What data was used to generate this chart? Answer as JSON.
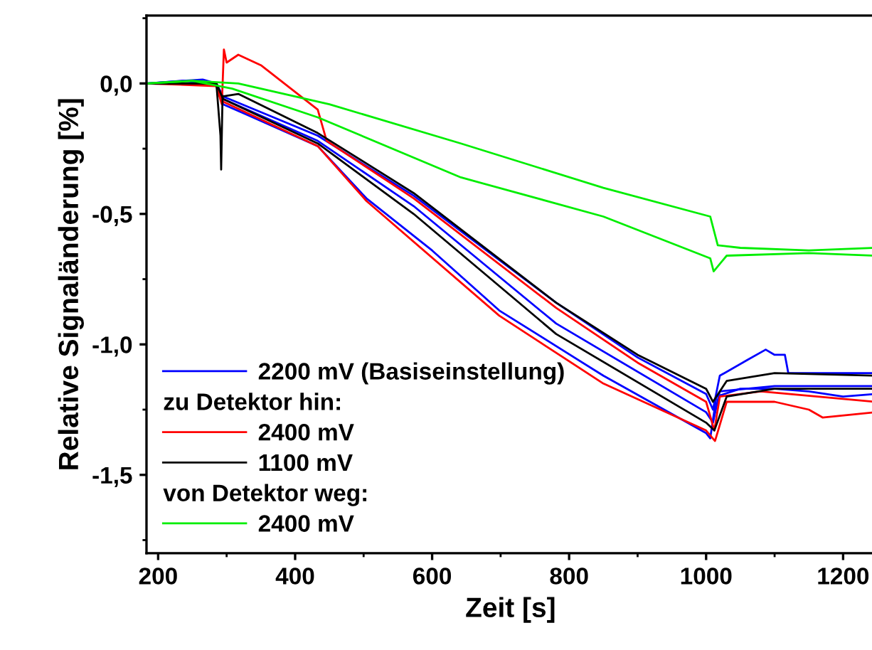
{
  "chart_data": {
    "type": "line",
    "xlabel": "Zeit [s]",
    "ylabel": "Relative Signaländerung [%]",
    "xlim": [
      183,
      1246
    ],
    "ylim": [
      -1.8,
      0.26
    ],
    "xticks": [
      200,
      400,
      600,
      800,
      1000,
      1200
    ],
    "yticks": [
      {
        "value": 0,
        "label": "0,0"
      },
      {
        "value": -0.5,
        "label": "-0,5"
      },
      {
        "value": -1.0,
        "label": "-1,0"
      },
      {
        "value": -1.5,
        "label": "-1,5"
      }
    ],
    "grid": false,
    "legend": "bottom left",
    "annotations": [
      "zu Detektor hin:",
      "von Detektor weg:"
    ],
    "series": [
      {
        "name": "2200 mV (Basiseinstellung)",
        "color": "#0000ff",
        "x": [
          183,
          235,
          285,
          295,
          330,
          433,
          504,
          600,
          698,
          850,
          1000,
          1006,
          1015,
          1050,
          1100,
          1150,
          1200,
          1246
        ],
        "values": [
          0,
          0.01,
          0,
          -0.08,
          -0.12,
          -0.24,
          -0.44,
          -0.64,
          -0.87,
          -1.12,
          -1.34,
          -1.36,
          -1.2,
          -1.17,
          -1.17,
          -1.18,
          -1.2,
          -1.19
        ]
      },
      {
        "color": "#0000ff",
        "x": [
          183,
          265,
          285,
          295,
          433,
          573,
          781,
          900,
          1000,
          1010,
          1020,
          1060,
          1087,
          1100,
          1115,
          1120,
          1246
        ],
        "values": [
          0,
          0.015,
          0,
          -0.05,
          -0.2,
          -0.43,
          -0.84,
          -1.05,
          -1.19,
          -1.25,
          -1.12,
          -1.06,
          -1.02,
          -1.04,
          -1.04,
          -1.11,
          -1.11
        ]
      },
      {
        "color": "#0000ff",
        "x": [
          183,
          285,
          295,
          433,
          573,
          781,
          1000,
          1010,
          1020,
          1100,
          1246
        ],
        "values": [
          0,
          0,
          -0.06,
          -0.22,
          -0.47,
          -0.92,
          -1.26,
          -1.3,
          -1.18,
          -1.16,
          -1.16
        ]
      },
      {
        "name": "2400 mV",
        "color": "#ff0000",
        "x": [
          183,
          285,
          293,
          296,
          300,
          317,
          350,
          433,
          446,
          573,
          781,
          900,
          1000,
          1012,
          1020,
          1080,
          1246
        ],
        "values": [
          0,
          -0.01,
          -0.08,
          0.13,
          0.08,
          0.11,
          0.07,
          -0.1,
          -0.22,
          -0.44,
          -0.86,
          -1.07,
          -1.22,
          -1.33,
          -1.2,
          -1.18,
          -1.22
        ]
      },
      {
        "color": "#ff0000",
        "x": [
          183,
          285,
          295,
          433,
          504,
          698,
          850,
          1000,
          1013,
          1030,
          1100,
          1150,
          1170,
          1246
        ],
        "values": [
          0,
          0,
          -0.07,
          -0.24,
          -0.45,
          -0.89,
          -1.15,
          -1.33,
          -1.37,
          -1.22,
          -1.22,
          -1.25,
          -1.28,
          -1.26
        ]
      },
      {
        "name": "1100 mV",
        "color": "#000000",
        "x": [
          183,
          285,
          291,
          292,
          294,
          317,
          433,
          573,
          781,
          900,
          1000,
          1010,
          1030,
          1100,
          1246
        ],
        "values": [
          0,
          0,
          -0.2,
          -0.33,
          -0.05,
          -0.04,
          -0.19,
          -0.42,
          -0.84,
          -1.04,
          -1.17,
          -1.22,
          -1.14,
          -1.11,
          -1.12
        ]
      },
      {
        "color": "#000000",
        "x": [
          183,
          285,
          295,
          433,
          573,
          781,
          1000,
          1012,
          1030,
          1100,
          1246
        ],
        "values": [
          0,
          0,
          -0.06,
          -0.23,
          -0.5,
          -0.96,
          -1.3,
          -1.33,
          -1.2,
          -1.17,
          -1.17
        ]
      },
      {
        "name": "2400 mV",
        "color": "#00ee00",
        "x": [
          183,
          250,
          317,
          450,
          642,
          850,
          1006,
          1017,
          1050,
          1150,
          1246
        ],
        "values": [
          0,
          0.01,
          0,
          -0.08,
          -0.23,
          -0.4,
          -0.51,
          -0.62,
          -0.63,
          -0.64,
          -0.63
        ]
      },
      {
        "color": "#00ee00",
        "x": [
          183,
          250,
          308,
          433,
          642,
          850,
          1006,
          1011,
          1030,
          1150,
          1246
        ],
        "values": [
          0,
          0.01,
          -0.02,
          -0.13,
          -0.36,
          -0.51,
          -0.67,
          -0.72,
          -0.66,
          -0.65,
          -0.66
        ]
      }
    ]
  }
}
